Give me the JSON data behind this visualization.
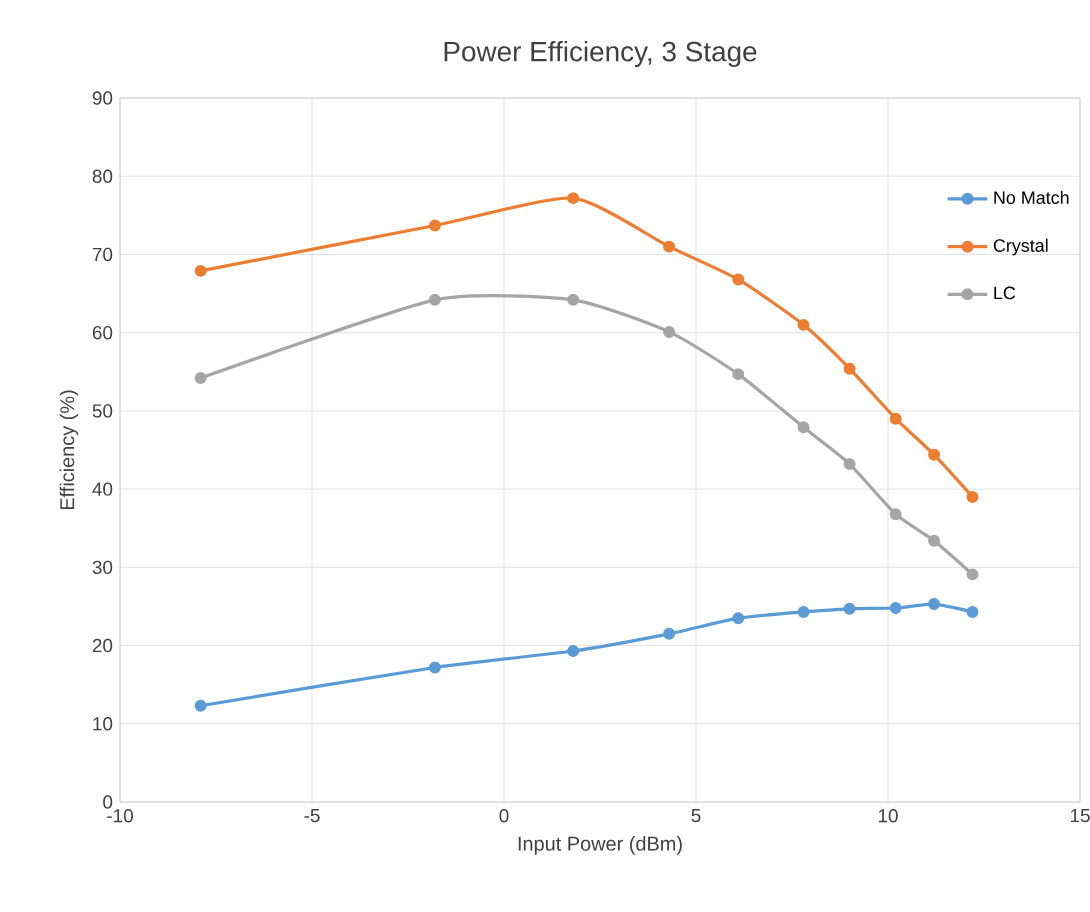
{
  "chart_data": {
    "type": "line",
    "title": "Power Efficiency, 3 Stage",
    "xlabel": "Input Power (dBm)",
    "ylabel": "Efficiency (%)",
    "x": [
      -7.9,
      -1.8,
      1.8,
      4.3,
      6.1,
      7.8,
      9.0,
      10.2,
      11.2,
      12.2
    ],
    "series": [
      {
        "name": "No Match",
        "color": "#5b9bd5",
        "values": [
          12.3,
          17.2,
          19.3,
          21.5,
          23.5,
          24.3,
          24.7,
          24.8,
          25.3,
          24.3
        ]
      },
      {
        "name": "Crystal",
        "color": "#ed7d31",
        "values": [
          67.9,
          73.7,
          77.2,
          71.0,
          66.8,
          61.0,
          55.4,
          49.0,
          44.4,
          39.0
        ]
      },
      {
        "name": "LC",
        "color": "#a5a5a5",
        "values": [
          54.2,
          64.2,
          64.2,
          60.1,
          54.7,
          47.9,
          43.2,
          36.8,
          33.4,
          29.1
        ]
      }
    ],
    "xlim": [
      -10,
      15
    ],
    "xticks": [
      -10,
      -5,
      0,
      5,
      10,
      15
    ],
    "ylim": [
      0,
      90
    ],
    "yticks": [
      0,
      10,
      20,
      30,
      40,
      50,
      60,
      70,
      80,
      90
    ],
    "grid": true,
    "legend": "right",
    "marker": "circle",
    "line_style": "solid"
  }
}
